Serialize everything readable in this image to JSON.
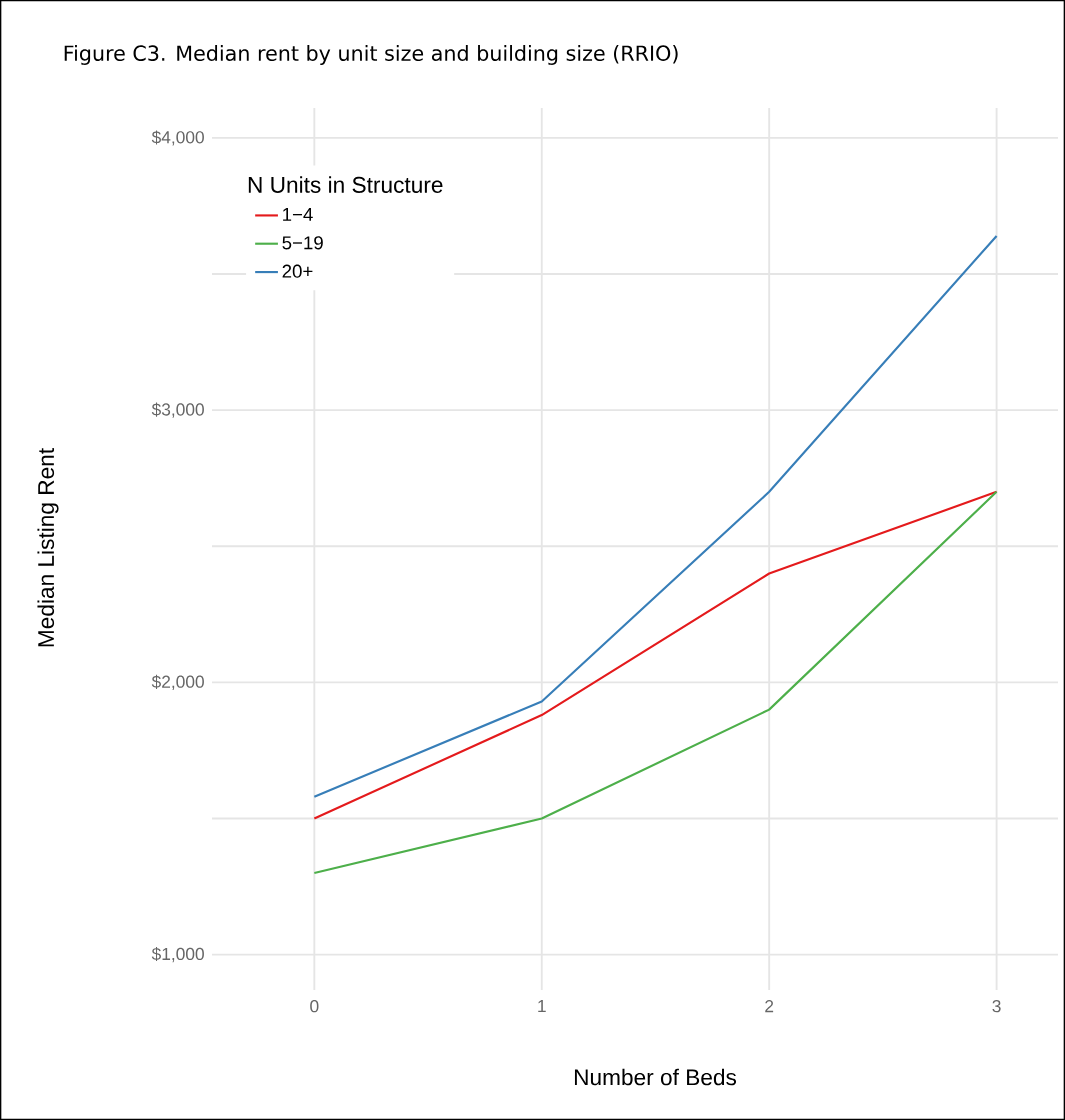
{
  "chart_data": {
    "type": "line",
    "title": "Figure C3.  Median rent by unit size and building size (RRIO)",
    "xlabel": "Number of Beds",
    "ylabel": "Median Listing Rent",
    "legend_title": "N Units in Structure",
    "x": [
      0,
      1,
      2,
      3
    ],
    "series": [
      {
        "name": "1−4",
        "color": "#e41a1c",
        "values": [
          1500,
          1880,
          2400,
          2700
        ]
      },
      {
        "name": "5−19",
        "color": "#4daf4a",
        "values": [
          1300,
          1500,
          1900,
          2700
        ]
      },
      {
        "name": "20+",
        "color": "#377eb8",
        "values": [
          1580,
          1930,
          2700,
          3640
        ]
      }
    ],
    "xlim": [
      -0.45,
      3.27
    ],
    "ylim": [
      870,
      4110
    ],
    "xticks": [
      0,
      1,
      2,
      3
    ],
    "yticks": [
      {
        "value": 1000,
        "label": "$1,000"
      },
      {
        "value": 1500,
        "label": null
      },
      {
        "value": 2000,
        "label": "$2,000"
      },
      {
        "value": 2500,
        "label": null
      },
      {
        "value": 3000,
        "label": "$3,000"
      },
      {
        "value": 3500,
        "label": null
      },
      {
        "value": 4000,
        "label": "$4,000"
      }
    ],
    "grid": true,
    "legend": "top left"
  }
}
